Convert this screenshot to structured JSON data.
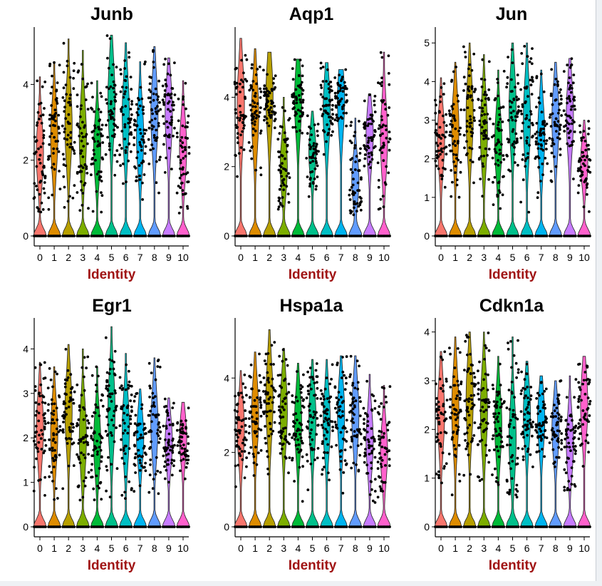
{
  "figure": {
    "xlabel": "Identity",
    "categories": [
      "0",
      "1",
      "2",
      "3",
      "4",
      "5",
      "6",
      "7",
      "8",
      "9",
      "10"
    ],
    "cluster_colors": [
      "#F8766D",
      "#DE8C00",
      "#B79F00",
      "#7CAE00",
      "#00BA38",
      "#00C08B",
      "#00BFC4",
      "#00B4F0",
      "#619CFF",
      "#C77CFF",
      "#FF61CC"
    ]
  },
  "chart_data": [
    {
      "type": "violin",
      "title": "Junb",
      "xlabel": "Identity",
      "categories": [
        "0",
        "1",
        "2",
        "3",
        "4",
        "5",
        "6",
        "7",
        "8",
        "9",
        "10"
      ],
      "ylim": [
        0,
        5.4
      ],
      "yticks": [
        "0",
        "2",
        "4"
      ],
      "series": [
        {
          "cluster": "0",
          "max": 4.2,
          "median": 2.2
        },
        {
          "cluster": "1",
          "max": 4.6,
          "median": 2.6
        },
        {
          "cluster": "2",
          "max": 5.2,
          "median": 2.9
        },
        {
          "cluster": "3",
          "max": 4.9,
          "median": 2.6
        },
        {
          "cluster": "4",
          "max": 4.1,
          "median": 2.3
        },
        {
          "cluster": "5",
          "max": 5.3,
          "median": 3.6
        },
        {
          "cluster": "6",
          "max": 5.1,
          "median": 3.2
        },
        {
          "cluster": "7",
          "max": 4.6,
          "median": 2.6
        },
        {
          "cluster": "8",
          "max": 5.0,
          "median": 3.2
        },
        {
          "cluster": "9",
          "max": 4.7,
          "median": 3.2
        },
        {
          "cluster": "10",
          "max": 4.1,
          "median": 2.3
        }
      ]
    },
    {
      "type": "violin",
      "title": "Aqp1",
      "xlabel": "Identity",
      "categories": [
        "0",
        "1",
        "2",
        "3",
        "4",
        "5",
        "6",
        "7",
        "8",
        "9",
        "10"
      ],
      "ylim": [
        0,
        5.9
      ],
      "yticks": [
        "0",
        "2",
        "4"
      ],
      "series": [
        {
          "cluster": "0",
          "max": 5.7,
          "median": 3.8
        },
        {
          "cluster": "1",
          "max": 5.4,
          "median": 3.5
        },
        {
          "cluster": "2",
          "max": 5.3,
          "median": 4.0
        },
        {
          "cluster": "3",
          "max": 4.0,
          "median": 2.0
        },
        {
          "cluster": "4",
          "max": 5.1,
          "median": 3.9
        },
        {
          "cluster": "5",
          "max": 3.6,
          "median": 2.4
        },
        {
          "cluster": "6",
          "max": 5.0,
          "median": 3.6
        },
        {
          "cluster": "7",
          "max": 4.8,
          "median": 3.9
        },
        {
          "cluster": "8",
          "max": 3.4,
          "median": 1.6
        },
        {
          "cluster": "9",
          "max": 4.1,
          "median": 2.9
        },
        {
          "cluster": "10",
          "max": 5.3,
          "median": 2.8
        }
      ]
    },
    {
      "type": "violin",
      "title": "Jun",
      "xlabel": "Identity",
      "categories": [
        "0",
        "1",
        "2",
        "3",
        "4",
        "5",
        "6",
        "7",
        "8",
        "9",
        "10"
      ],
      "ylim": [
        0,
        5.3
      ],
      "yticks": [
        "0",
        "1",
        "2",
        "3",
        "4",
        "5"
      ],
      "series": [
        {
          "cluster": "0",
          "max": 4.1,
          "median": 2.5
        },
        {
          "cluster": "1",
          "max": 4.5,
          "median": 2.8
        },
        {
          "cluster": "2",
          "max": 5.0,
          "median": 3.1
        },
        {
          "cluster": "3",
          "max": 4.7,
          "median": 2.7
        },
        {
          "cluster": "4",
          "max": 4.3,
          "median": 2.4
        },
        {
          "cluster": "5",
          "max": 5.0,
          "median": 3.3
        },
        {
          "cluster": "6",
          "max": 5.0,
          "median": 3.0
        },
        {
          "cluster": "7",
          "max": 4.3,
          "median": 2.6
        },
        {
          "cluster": "8",
          "max": 4.5,
          "median": 3.0
        },
        {
          "cluster": "9",
          "max": 4.6,
          "median": 3.1
        },
        {
          "cluster": "10",
          "max": 3.0,
          "median": 1.9
        }
      ]
    },
    {
      "type": "violin",
      "title": "Egr1",
      "xlabel": "Identity",
      "categories": [
        "0",
        "1",
        "2",
        "3",
        "4",
        "5",
        "6",
        "7",
        "8",
        "9",
        "10"
      ],
      "ylim": [
        0,
        4.6
      ],
      "yticks": [
        "0",
        "1",
        "2",
        "3",
        "4"
      ],
      "series": [
        {
          "cluster": "0",
          "max": 3.7,
          "median": 2.2
        },
        {
          "cluster": "1",
          "max": 3.6,
          "median": 2.1
        },
        {
          "cluster": "2",
          "max": 4.1,
          "median": 2.6
        },
        {
          "cluster": "3",
          "max": 4.0,
          "median": 2.0
        },
        {
          "cluster": "4",
          "max": 3.6,
          "median": 1.9
        },
        {
          "cluster": "5",
          "max": 4.5,
          "median": 2.6
        },
        {
          "cluster": "6",
          "max": 3.9,
          "median": 2.2
        },
        {
          "cluster": "7",
          "max": 3.1,
          "median": 2.0
        },
        {
          "cluster": "8",
          "max": 3.8,
          "median": 2.3
        },
        {
          "cluster": "9",
          "max": 2.9,
          "median": 1.9
        },
        {
          "cluster": "10",
          "max": 2.8,
          "median": 2.0
        }
      ]
    },
    {
      "type": "violin",
      "title": "Hspa1a",
      "xlabel": "Identity",
      "categories": [
        "0",
        "1",
        "2",
        "3",
        "4",
        "5",
        "6",
        "7",
        "8",
        "9",
        "10"
      ],
      "ylim": [
        0,
        5.5
      ],
      "yticks": [
        "0",
        "2",
        "4"
      ],
      "series": [
        {
          "cluster": "0",
          "max": 4.2,
          "median": 2.6
        },
        {
          "cluster": "1",
          "max": 4.7,
          "median": 3.0
        },
        {
          "cluster": "2",
          "max": 5.3,
          "median": 3.4
        },
        {
          "cluster": "3",
          "max": 4.8,
          "median": 3.1
        },
        {
          "cluster": "4",
          "max": 4.4,
          "median": 2.8
        },
        {
          "cluster": "5",
          "max": 4.5,
          "median": 2.9
        },
        {
          "cluster": "6",
          "max": 4.5,
          "median": 2.8
        },
        {
          "cluster": "7",
          "max": 4.6,
          "median": 3.0
        },
        {
          "cluster": "8",
          "max": 4.6,
          "median": 3.0
        },
        {
          "cluster": "9",
          "max": 4.1,
          "median": 2.3
        },
        {
          "cluster": "10",
          "max": 3.8,
          "median": 2.0
        }
      ]
    },
    {
      "type": "violin",
      "title": "Cdkn1a",
      "xlabel": "Identity",
      "categories": [
        "0",
        "1",
        "2",
        "3",
        "4",
        "5",
        "6",
        "7",
        "8",
        "9",
        "10"
      ],
      "ylim": [
        0,
        4.2
      ],
      "yticks": [
        "0",
        "1",
        "2",
        "3",
        "4"
      ],
      "series": [
        {
          "cluster": "0",
          "max": 3.6,
          "median": 2.3
        },
        {
          "cluster": "1",
          "max": 3.9,
          "median": 2.4
        },
        {
          "cluster": "2",
          "max": 4.0,
          "median": 2.6
        },
        {
          "cluster": "3",
          "max": 4.0,
          "median": 2.4
        },
        {
          "cluster": "4",
          "max": 3.5,
          "median": 2.1
        },
        {
          "cluster": "5",
          "max": 3.9,
          "median": 1.8
        },
        {
          "cluster": "6",
          "max": 3.4,
          "median": 2.3
        },
        {
          "cluster": "7",
          "max": 3.1,
          "median": 2.2
        },
        {
          "cluster": "8",
          "max": 3.0,
          "median": 2.0
        },
        {
          "cluster": "9",
          "max": 3.1,
          "median": 1.7
        },
        {
          "cluster": "10",
          "max": 3.5,
          "median": 2.5
        }
      ]
    }
  ]
}
